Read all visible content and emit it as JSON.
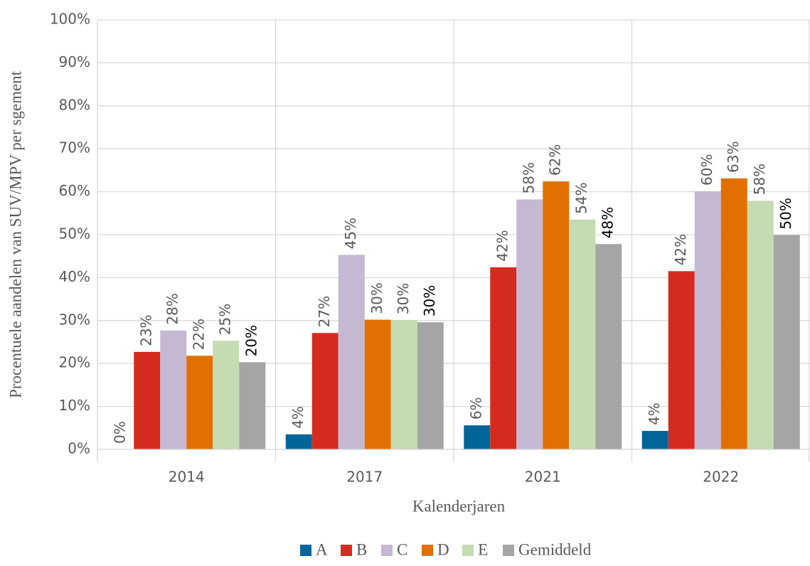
{
  "chart_data": {
    "type": "bar",
    "y_label": "Procentuele aandelen van SUV/MPV per sgement",
    "x_label": "Kalenderjaren",
    "categories": [
      "2014",
      "2017",
      "2021",
      "2022"
    ],
    "series": [
      {
        "name": "A",
        "color": "#00669a",
        "values": [
          0,
          3.5,
          5.6,
          4.3
        ],
        "value_labels": [
          "0%",
          "4%",
          "6%",
          "4%"
        ]
      },
      {
        "name": "B",
        "color": "#d52b1e",
        "values": [
          22.7,
          27.1,
          42.4,
          41.5
        ],
        "value_labels": [
          "23%",
          "27%",
          "42%",
          "42%"
        ]
      },
      {
        "name": "C",
        "color": "#c5b8d3",
        "values": [
          27.7,
          45.3,
          58.2,
          60.1
        ],
        "value_labels": [
          "28%",
          "45%",
          "58%",
          "60%"
        ]
      },
      {
        "name": "D",
        "color": "#e17000",
        "values": [
          21.8,
          30.2,
          62.4,
          63.1
        ],
        "value_labels": [
          "22%",
          "30%",
          "62%",
          "63%"
        ]
      },
      {
        "name": "E",
        "color": "#c5dbb2",
        "values": [
          25.3,
          30.1,
          53.5,
          57.9
        ],
        "value_labels": [
          "25%",
          "30%",
          "54%",
          "58%"
        ]
      },
      {
        "name": "Gemiddeld",
        "color": "#a5a5a5",
        "values": [
          20.3,
          29.6,
          47.8,
          49.9
        ],
        "value_labels": [
          "20%",
          "30%",
          "48%",
          "50%"
        ]
      }
    ],
    "ylim": [
      0,
      100
    ],
    "yticks": [
      {
        "value": 0,
        "label": "0%"
      },
      {
        "value": 10,
        "label": "10%"
      },
      {
        "value": 20,
        "label": "20%"
      },
      {
        "value": 30,
        "label": "30%"
      },
      {
        "value": 40,
        "label": "40%"
      },
      {
        "value": 50,
        "label": "50%"
      },
      {
        "value": 60,
        "label": "60%"
      },
      {
        "value": 70,
        "label": "70%"
      },
      {
        "value": 80,
        "label": "80%"
      },
      {
        "value": 90,
        "label": "90%"
      },
      {
        "value": 100,
        "label": "100%"
      }
    ],
    "grid": true,
    "legend": "bottom"
  }
}
